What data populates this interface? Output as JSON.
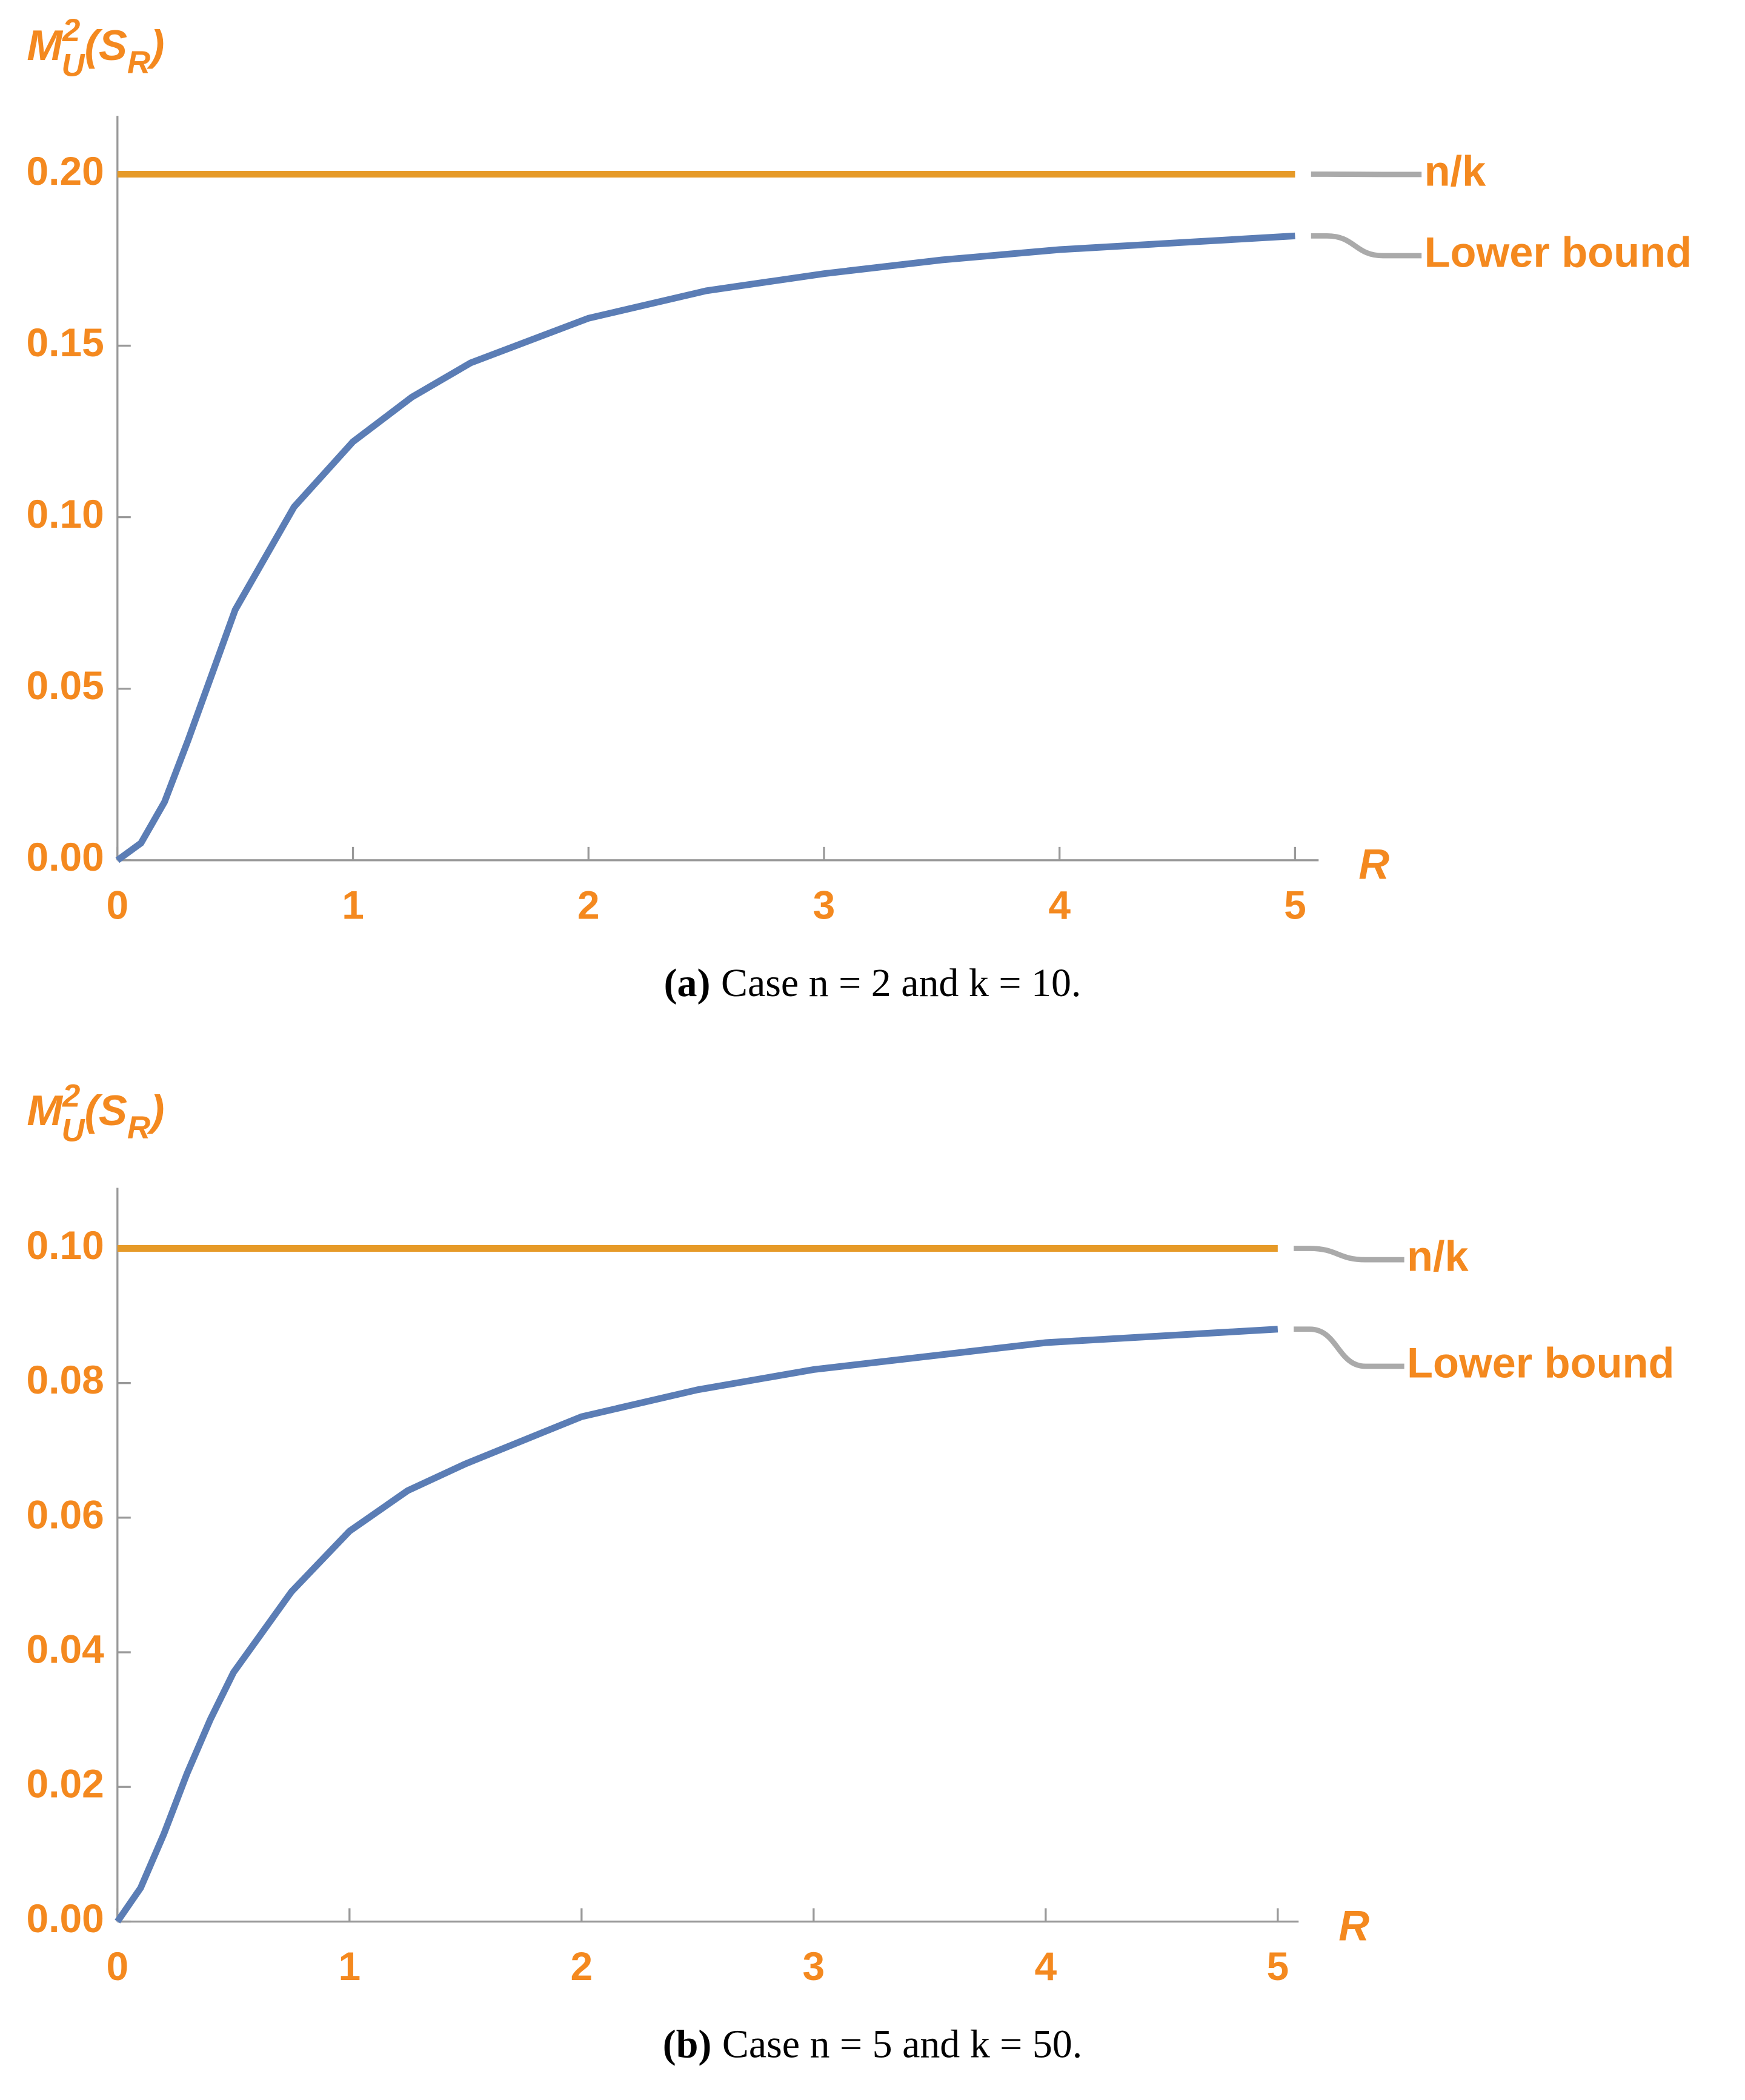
{
  "chart_data": [
    {
      "type": "line",
      "y_label": {
        "base": "M",
        "sup": "2",
        "sub": "U",
        "arg": "(S",
        "arg_sub": "R",
        "close": ")"
      },
      "x_label": "R",
      "caption": {
        "label": "(a)",
        "text": "Case n = 2 and k = 10."
      },
      "x": [
        0,
        0.1,
        0.2,
        0.3,
        0.4,
        0.5,
        0.75,
        1,
        1.25,
        1.5,
        2,
        2.5,
        3,
        3.5,
        4,
        4.5,
        5
      ],
      "series": [
        {
          "name": "n/k",
          "color": "#e69a28",
          "values": [
            0.2,
            0.2,
            0.2,
            0.2,
            0.2,
            0.2,
            0.2,
            0.2,
            0.2,
            0.2,
            0.2,
            0.2,
            0.2,
            0.2,
            0.2,
            0.2,
            0.2
          ]
        },
        {
          "name": "Lower bound",
          "color": "#5b7db5",
          "values": [
            0,
            0.005,
            0.017,
            0.035,
            0.054,
            0.073,
            0.103,
            0.122,
            0.135,
            0.145,
            0.158,
            0.166,
            0.171,
            0.175,
            0.178,
            0.18,
            0.182
          ]
        }
      ],
      "xlim": [
        0,
        5.1
      ],
      "xticks": [
        0,
        1,
        2,
        3,
        4,
        5
      ],
      "ylim": [
        0,
        0.217
      ],
      "yticks": [
        {
          "value": 0,
          "label": "0.00"
        },
        {
          "value": 0.05,
          "label": "0.05"
        },
        {
          "value": 0.1,
          "label": "0.10"
        },
        {
          "value": 0.15,
          "label": "0.15"
        },
        {
          "value": 0.2,
          "label": "0.20"
        }
      ]
    },
    {
      "type": "line",
      "y_label": {
        "base": "M",
        "sup": "2",
        "sub": "U",
        "arg": "(S",
        "arg_sub": "R",
        "close": ")"
      },
      "x_label": "R",
      "caption": {
        "label": "(b)",
        "text": "Case n = 5 and k = 50."
      },
      "x": [
        0,
        0.1,
        0.2,
        0.3,
        0.4,
        0.5,
        0.75,
        1,
        1.25,
        1.5,
        2,
        2.5,
        3,
        3.5,
        4,
        4.5,
        5
      ],
      "series": [
        {
          "name": "n/k",
          "color": "#e69a28",
          "values": [
            0.1,
            0.1,
            0.1,
            0.1,
            0.1,
            0.1,
            0.1,
            0.1,
            0.1,
            0.1,
            0.1,
            0.1,
            0.1,
            0.1,
            0.1,
            0.1,
            0.1
          ]
        },
        {
          "name": "Lower bound",
          "color": "#5b7db5",
          "values": [
            0,
            0.005,
            0.013,
            0.022,
            0.03,
            0.037,
            0.049,
            0.058,
            0.064,
            0.068,
            0.075,
            0.079,
            0.082,
            0.084,
            0.086,
            0.087,
            0.088
          ]
        }
      ],
      "xlim": [
        0,
        5.09
      ],
      "xticks": [
        0,
        1,
        2,
        3,
        4,
        5
      ],
      "ylim": [
        0,
        0.109
      ],
      "yticks": [
        {
          "value": 0,
          "label": "0.00"
        },
        {
          "value": 0.02,
          "label": "0.02"
        },
        {
          "value": 0.04,
          "label": "0.04"
        },
        {
          "value": 0.06,
          "label": "0.06"
        },
        {
          "value": 0.08,
          "label": "0.08"
        },
        {
          "value": 0.1,
          "label": "0.10"
        }
      ]
    }
  ]
}
